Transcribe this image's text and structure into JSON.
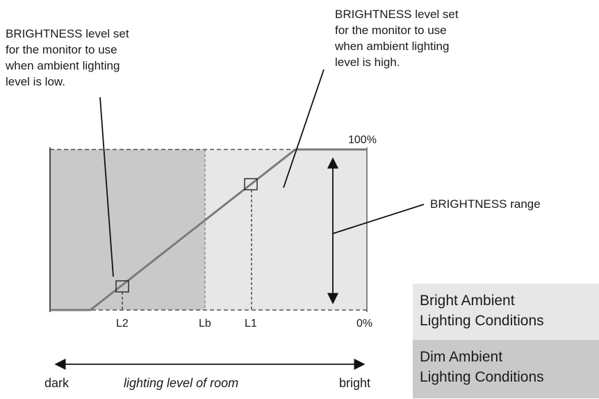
{
  "annotations": {
    "low_note": "BRIGHTNESS level set\nfor the monitor to use\nwhen ambient lighting\nlevel is low.",
    "high_note": "BRIGHTNESS level set\nfor the monitor to use\nwhen ambient lighting\nlevel is high.",
    "range_label": "BRIGHTNESS range"
  },
  "graph": {
    "top_label": "100%",
    "bottom_label": "0%",
    "markers": [
      "L2",
      "Lb",
      "L1"
    ]
  },
  "axis": {
    "left": "dark",
    "title": "lighting level of room",
    "right": "bright"
  },
  "legend": {
    "bright": "Bright Ambient\nLighting Conditions",
    "dim": "Dim Ambient\nLighting Conditions"
  },
  "colors": {
    "dim_region": "#c9c9c9",
    "bright_region": "#e7e7e7",
    "curve": "#7a7a7a"
  }
}
